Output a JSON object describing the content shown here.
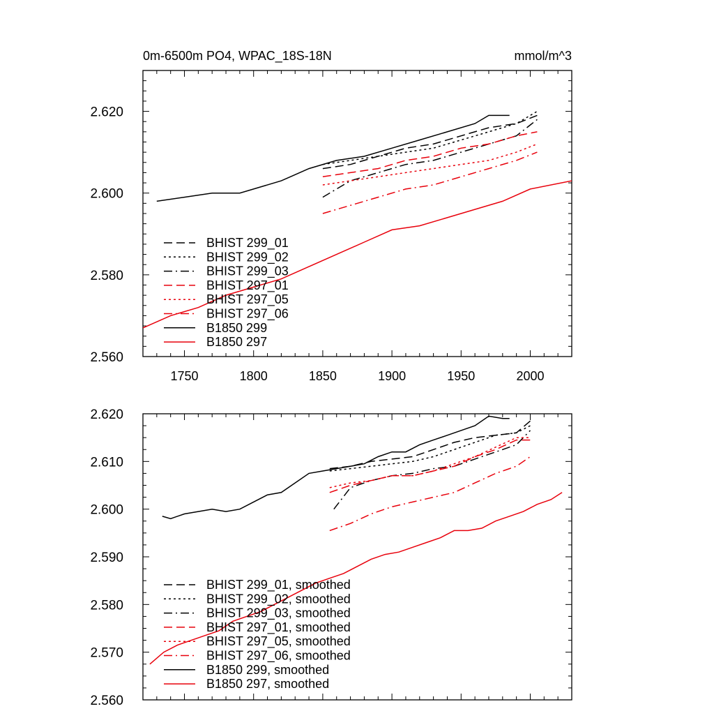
{
  "chart_data": [
    {
      "type": "line",
      "title": "0m-6500m PO4, WPAC_18S-18N",
      "units": "mmol/m^3",
      "xlim": [
        1720,
        2030
      ],
      "ylim": [
        2.56,
        2.63
      ],
      "xticks": [
        1750,
        1800,
        1850,
        1900,
        1950,
        2000
      ],
      "yticks": [
        2.56,
        2.58,
        2.6,
        2.62
      ],
      "ytick_labels": [
        "2.560",
        "2.580",
        "2.600",
        "2.620"
      ],
      "grid": false,
      "legend_position": "bottom-left",
      "series": [
        {
          "name": "BHIST 299_01",
          "color": "#000000",
          "dash": "dash",
          "x": [
            1850,
            1870,
            1890,
            1910,
            1930,
            1950,
            1970,
            1990,
            2005
          ],
          "y": [
            2.606,
            2.607,
            2.609,
            2.611,
            2.612,
            2.614,
            2.616,
            2.617,
            2.619
          ]
        },
        {
          "name": "BHIST 299_02",
          "color": "#000000",
          "dash": "dot",
          "x": [
            1850,
            1870,
            1890,
            1910,
            1930,
            1950,
            1970,
            1990,
            2005
          ],
          "y": [
            2.607,
            2.608,
            2.609,
            2.61,
            2.611,
            2.613,
            2.615,
            2.617,
            2.62
          ]
        },
        {
          "name": "BHIST 299_03",
          "color": "#000000",
          "dash": "dashdot",
          "x": [
            1850,
            1870,
            1890,
            1910,
            1930,
            1950,
            1970,
            1990,
            2005
          ],
          "y": [
            2.599,
            2.603,
            2.605,
            2.607,
            2.608,
            2.61,
            2.612,
            2.614,
            2.618
          ]
        },
        {
          "name": "BHIST 297_01",
          "color": "#e8000b",
          "dash": "dash",
          "x": [
            1850,
            1870,
            1890,
            1910,
            1930,
            1950,
            1970,
            1990,
            2005
          ],
          "y": [
            2.604,
            2.605,
            2.606,
            2.608,
            2.609,
            2.611,
            2.612,
            2.614,
            2.615
          ]
        },
        {
          "name": "BHIST 297_05",
          "color": "#e8000b",
          "dash": "dot",
          "x": [
            1850,
            1870,
            1890,
            1910,
            1930,
            1950,
            1970,
            1990,
            2005
          ],
          "y": [
            2.602,
            2.603,
            2.604,
            2.605,
            2.606,
            2.607,
            2.608,
            2.61,
            2.612
          ]
        },
        {
          "name": "BHIST 297_06",
          "color": "#e8000b",
          "dash": "dashdot",
          "x": [
            1850,
            1870,
            1890,
            1910,
            1930,
            1950,
            1970,
            1990,
            2005
          ],
          "y": [
            2.595,
            2.597,
            2.599,
            2.601,
            2.602,
            2.604,
            2.606,
            2.608,
            2.61
          ]
        },
        {
          "name": "B1850 299",
          "color": "#000000",
          "dash": "solid",
          "x": [
            1730,
            1750,
            1770,
            1790,
            1800,
            1820,
            1840,
            1860,
            1880,
            1900,
            1920,
            1940,
            1960,
            1970,
            1985
          ],
          "y": [
            2.598,
            2.599,
            2.6,
            2.6,
            2.601,
            2.603,
            2.606,
            2.608,
            2.609,
            2.611,
            2.613,
            2.615,
            2.617,
            2.619,
            2.619
          ]
        },
        {
          "name": "B1850 297",
          "color": "#e8000b",
          "dash": "solid",
          "x": [
            1720,
            1740,
            1760,
            1780,
            1800,
            1820,
            1840,
            1860,
            1880,
            1900,
            1920,
            1940,
            1960,
            1980,
            2000,
            2030
          ],
          "y": [
            2.567,
            2.57,
            2.572,
            2.575,
            2.577,
            2.579,
            2.582,
            2.585,
            2.588,
            2.591,
            2.592,
            2.594,
            2.596,
            2.598,
            2.601,
            2.603
          ]
        }
      ]
    },
    {
      "type": "line",
      "xlim": [
        1720,
        2030
      ],
      "ylim": [
        2.56,
        2.62
      ],
      "xticks": [
        1750,
        1800,
        1850,
        1900,
        1950,
        2000
      ],
      "yticks": [
        2.56,
        2.57,
        2.58,
        2.59,
        2.6,
        2.61,
        2.62
      ],
      "ytick_labels": [
        "2.560",
        "2.570",
        "2.580",
        "2.590",
        "2.600",
        "2.610",
        "2.620"
      ],
      "grid": false,
      "legend_position": "bottom-left",
      "series": [
        {
          "name": "BHIST 299_01, smoothed",
          "color": "#000000",
          "dash": "dash",
          "x": [
            1855,
            1870,
            1885,
            1900,
            1915,
            1930,
            1945,
            1960,
            1975,
            1990,
            2000
          ],
          "y": [
            2.6085,
            2.609,
            2.61,
            2.6105,
            2.611,
            2.6125,
            2.614,
            2.615,
            2.6155,
            2.616,
            2.6185
          ]
        },
        {
          "name": "BHIST 299_02, smoothed",
          "color": "#000000",
          "dash": "dot",
          "x": [
            1855,
            1870,
            1885,
            1900,
            1915,
            1930,
            1945,
            1960,
            1975,
            1990,
            2000
          ],
          "y": [
            2.608,
            2.6085,
            2.609,
            2.6095,
            2.61,
            2.611,
            2.6125,
            2.614,
            2.6155,
            2.616,
            2.6175
          ]
        },
        {
          "name": "BHIST 299_03, smoothed",
          "color": "#000000",
          "dash": "dashdot",
          "x": [
            1858,
            1870,
            1885,
            1900,
            1915,
            1930,
            1945,
            1960,
            1975,
            1990,
            2000
          ],
          "y": [
            2.6,
            2.6045,
            2.606,
            2.607,
            2.6075,
            2.6085,
            2.609,
            2.6105,
            2.612,
            2.6135,
            2.6165
          ]
        },
        {
          "name": "BHIST 297_01, smoothed",
          "color": "#e8000b",
          "dash": "dash",
          "x": [
            1855,
            1870,
            1885,
            1900,
            1915,
            1930,
            1945,
            1960,
            1975,
            1990,
            2000
          ],
          "y": [
            2.6035,
            2.605,
            2.606,
            2.607,
            2.607,
            2.608,
            2.609,
            2.611,
            2.6125,
            2.6145,
            2.6145
          ]
        },
        {
          "name": "BHIST 297_05, smoothed",
          "color": "#e8000b",
          "dash": "dot",
          "x": [
            1855,
            1870,
            1885,
            1900,
            1915,
            1930,
            1945,
            1960,
            1975,
            1990,
            2000
          ],
          "y": [
            2.6045,
            2.6055,
            2.606,
            2.607,
            2.607,
            2.608,
            2.6095,
            2.611,
            2.613,
            2.615,
            2.615
          ]
        },
        {
          "name": "BHIST 297_06, smoothed",
          "color": "#e8000b",
          "dash": "dashdot",
          "x": [
            1855,
            1870,
            1885,
            1900,
            1915,
            1930,
            1945,
            1960,
            1975,
            1990,
            2000
          ],
          "y": [
            2.5955,
            2.597,
            2.599,
            2.6005,
            2.6015,
            2.6025,
            2.6035,
            2.6055,
            2.6075,
            2.609,
            2.611
          ]
        },
        {
          "name": "B1850 299, smoothed",
          "color": "#000000",
          "dash": "solid",
          "x": [
            1734,
            1740,
            1750,
            1760,
            1770,
            1780,
            1790,
            1800,
            1810,
            1820,
            1830,
            1840,
            1850,
            1860,
            1870,
            1880,
            1890,
            1900,
            1910,
            1920,
            1930,
            1940,
            1950,
            1960,
            1970,
            1980,
            1985
          ],
          "y": [
            2.5985,
            2.598,
            2.599,
            2.5995,
            2.6,
            2.5995,
            2.6,
            2.6015,
            2.603,
            2.6035,
            2.6055,
            2.6075,
            2.608,
            2.6085,
            2.609,
            2.6095,
            2.611,
            2.612,
            2.612,
            2.6135,
            2.6145,
            2.6155,
            2.6165,
            2.6175,
            2.6195,
            2.619,
            2.619
          ]
        },
        {
          "name": "B1850 297, smoothed",
          "color": "#e8000b",
          "dash": "solid",
          "x": [
            1725,
            1735,
            1745,
            1755,
            1765,
            1775,
            1785,
            1795,
            1805,
            1815,
            1825,
            1835,
            1845,
            1855,
            1865,
            1875,
            1885,
            1895,
            1905,
            1915,
            1925,
            1935,
            1945,
            1955,
            1965,
            1975,
            1985,
            1995,
            2005,
            2015,
            2023
          ],
          "y": [
            2.5675,
            2.57,
            2.5715,
            2.5725,
            2.5735,
            2.5745,
            2.5765,
            2.5775,
            2.5785,
            2.58,
            2.5815,
            2.583,
            2.5845,
            2.5855,
            2.5865,
            2.588,
            2.5895,
            2.5905,
            2.591,
            2.592,
            2.593,
            2.594,
            2.5955,
            2.5955,
            2.596,
            2.5975,
            2.5985,
            2.5995,
            2.601,
            2.602,
            2.6035
          ]
        }
      ]
    }
  ]
}
